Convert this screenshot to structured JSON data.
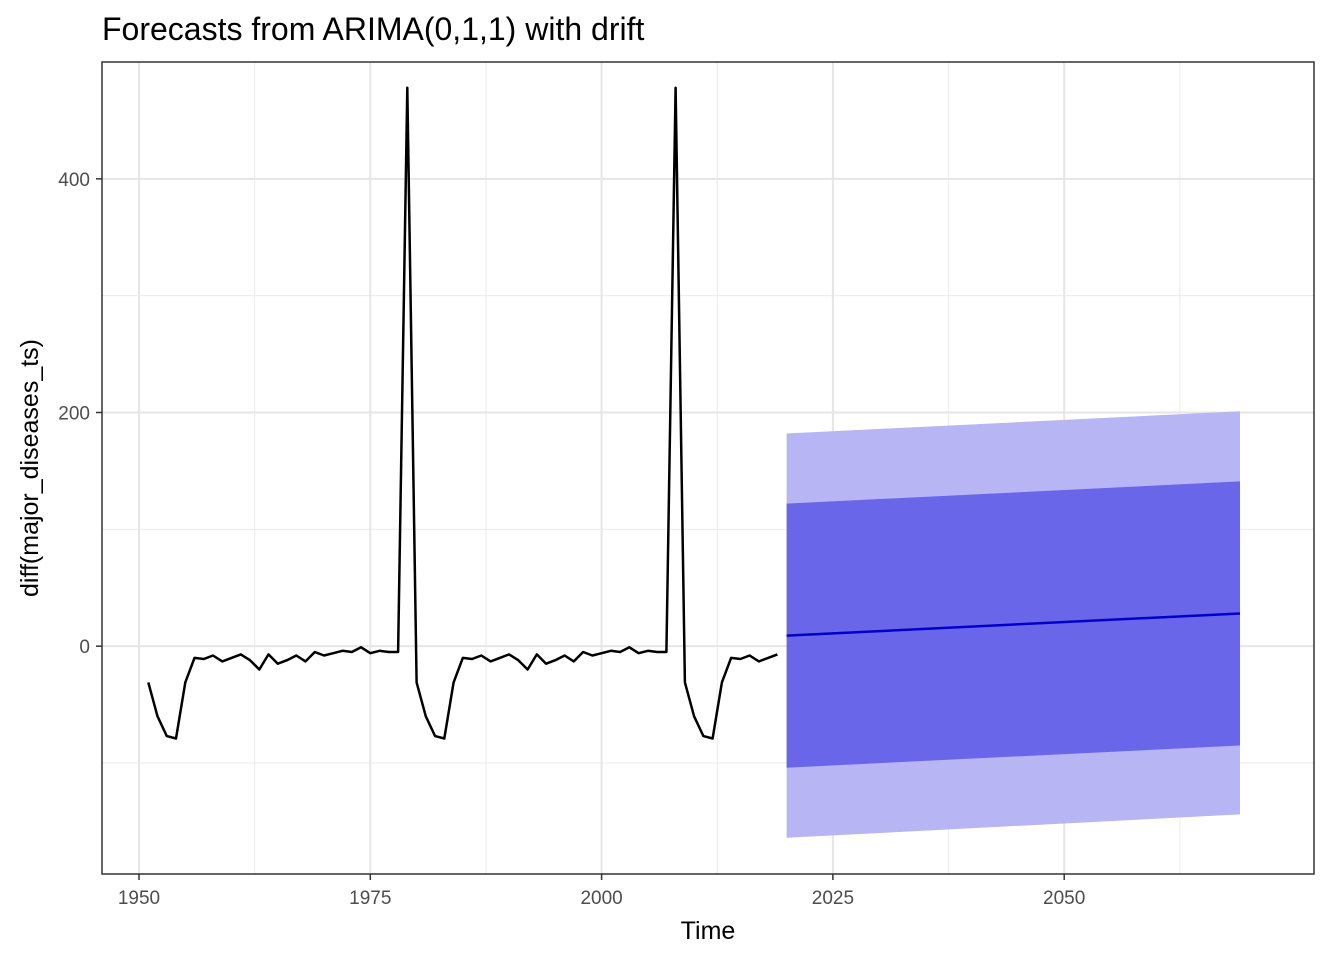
{
  "chart_data": {
    "type": "line",
    "title": "Forecasts from ARIMA(0,1,1) with drift",
    "xlabel": "Time",
    "ylabel": "diff(major_diseases_ts)",
    "xlim": [
      1946,
      2077
    ],
    "ylim": [
      -195,
      500
    ],
    "x_ticks": [
      1950,
      1975,
      2000,
      2025,
      2050
    ],
    "y_ticks": [
      0,
      200,
      400
    ],
    "grid": true,
    "series": [
      {
        "role": "observed",
        "color": "#000000",
        "x": [
          1951,
          1952,
          1953,
          1954,
          1955,
          1956,
          1957,
          1958,
          1959,
          1960,
          1961,
          1962,
          1963,
          1964,
          1965,
          1966,
          1967,
          1968,
          1969,
          1970,
          1971,
          1972,
          1973,
          1974,
          1975,
          1976,
          1977,
          1978,
          1979,
          1980,
          1981,
          1982,
          1983,
          1984,
          1985,
          1986,
          1987,
          1988,
          1989,
          1990,
          1991,
          1992,
          1993,
          1994,
          1995,
          1996,
          1997,
          1998,
          1999,
          2000,
          2001,
          2002,
          2003,
          2004,
          2005,
          2006,
          2007,
          2008,
          2009,
          2010,
          2011,
          2012,
          2013,
          2014,
          2015,
          2016,
          2017,
          2018,
          2019
        ],
        "y": [
          -31,
          -60,
          -77,
          -79,
          -31,
          -10,
          -11,
          -8,
          -13,
          -10,
          -7,
          -12,
          -20,
          -7,
          -15,
          -12,
          -8,
          -13,
          -5,
          -8,
          -6,
          -4,
          -5,
          -1,
          -6,
          -4,
          -5,
          -5,
          478,
          -31,
          -60,
          -77,
          -79,
          -31,
          -10,
          -11,
          -8,
          -13,
          -10,
          -7,
          -12,
          -20,
          -7,
          -15,
          -12,
          -8,
          -13,
          -5,
          -8,
          -6,
          -4,
          -5,
          -1,
          -6,
          -4,
          -5,
          -5,
          478,
          -31,
          -60,
          -77,
          -79,
          -31,
          -10,
          -11,
          -8,
          -13,
          -10,
          -7
        ]
      }
    ],
    "forecast": {
      "x": [
        2020,
        2069
      ],
      "mean": [
        9,
        28
      ],
      "lo80": [
        -104,
        -85
      ],
      "hi80": [
        122,
        141
      ],
      "lo95": [
        -164,
        -144
      ],
      "hi95": [
        182,
        201
      ],
      "mean_color": "#0000cc",
      "band80_color": "#6a66ea",
      "band95_color": "#b7b5f4"
    }
  }
}
